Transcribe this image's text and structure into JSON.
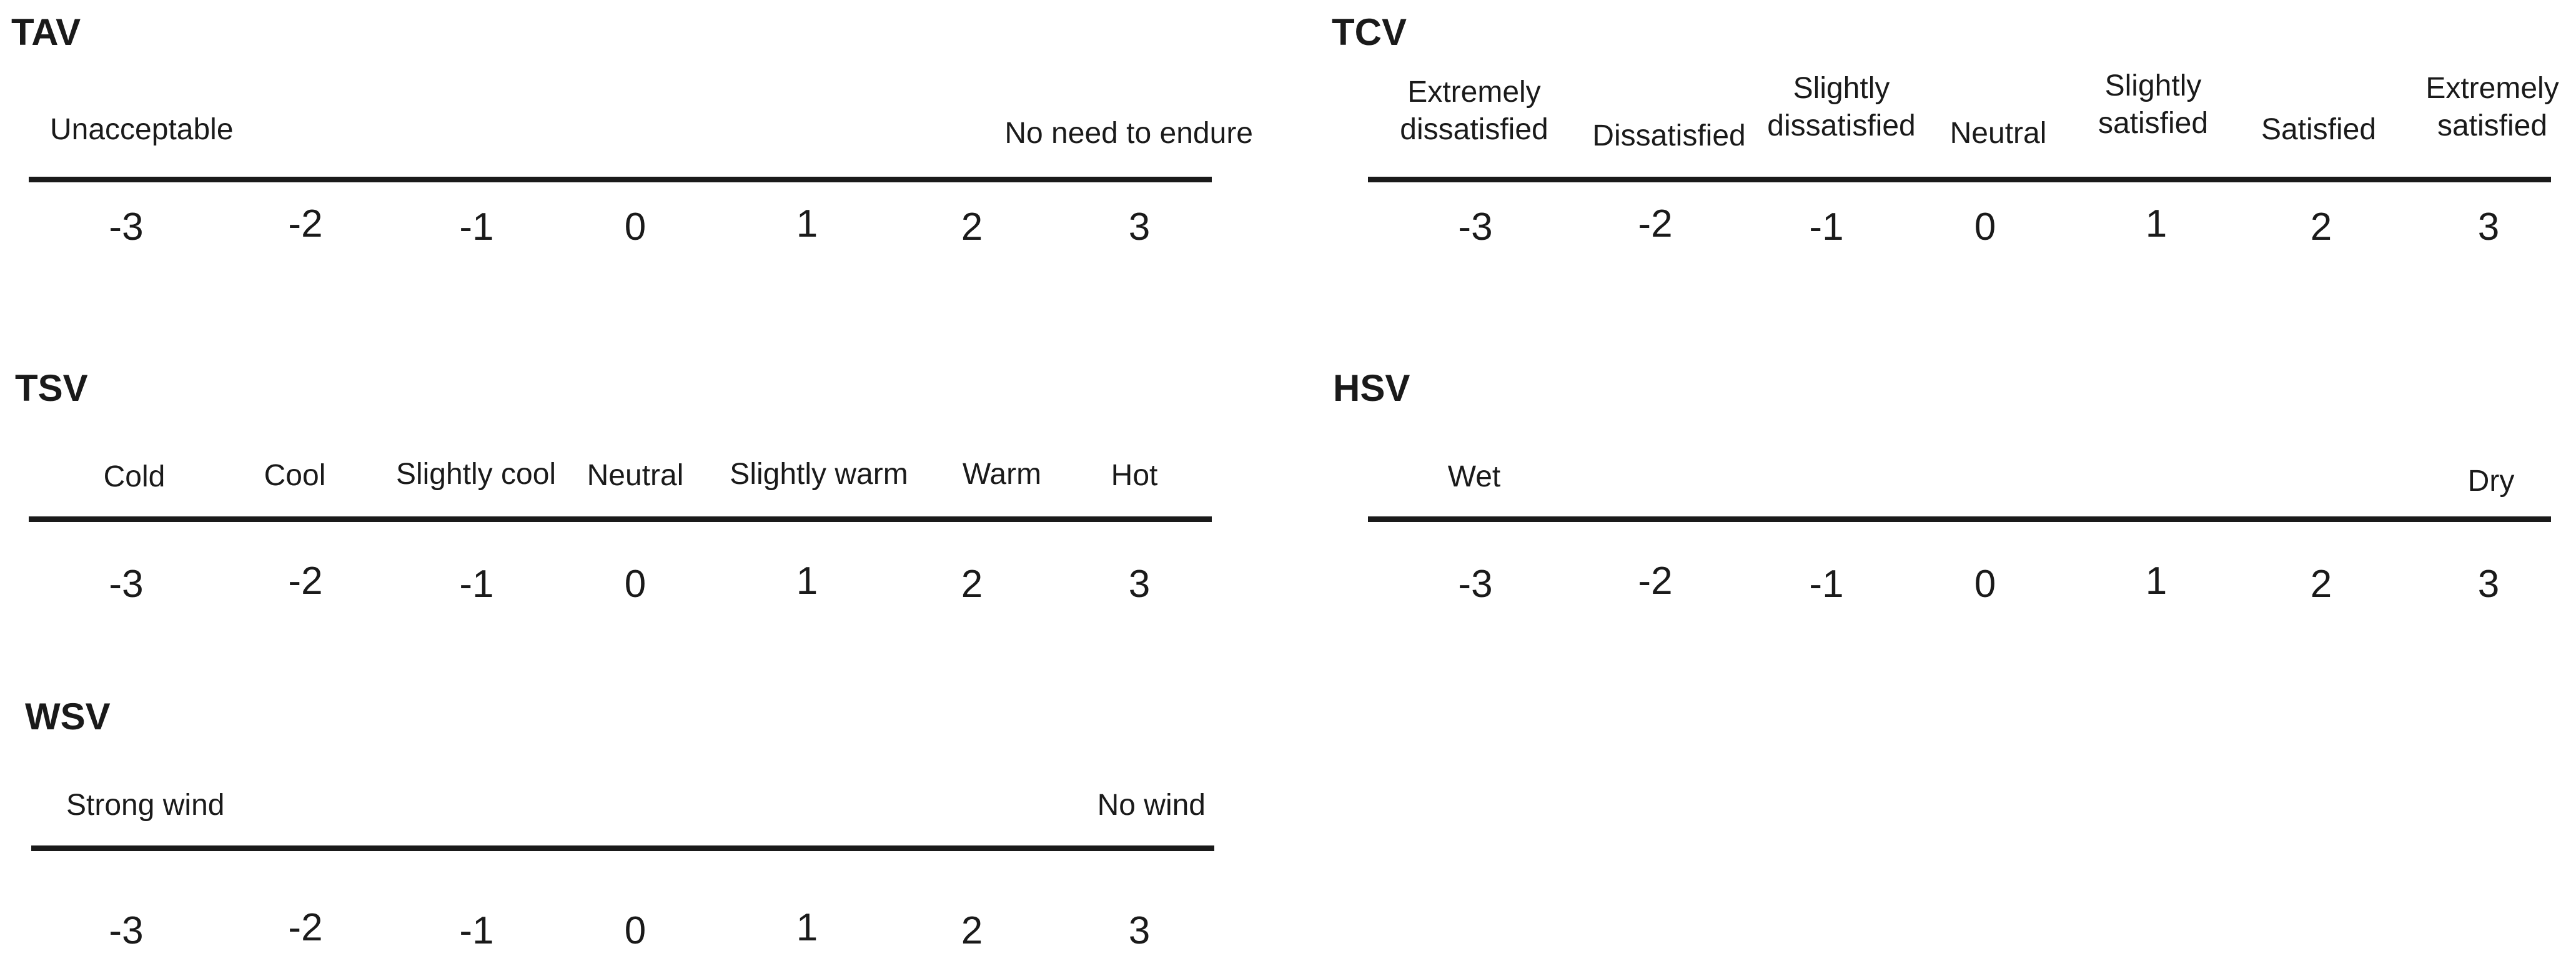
{
  "scales": {
    "tav": {
      "title": "TAV",
      "left_label": "Unacceptable",
      "right_label": "No need to endure",
      "numbers": [
        "-3",
        "-2",
        "-1",
        "0",
        "1",
        "2",
        "3"
      ]
    },
    "tcv": {
      "title": "TCV",
      "labels": [
        "Extremely\ndissatisfied",
        "Dissatisfied",
        "Slightly\ndissatisfied",
        "Neutral",
        "Slightly\nsatisfied",
        "Satisfied",
        "Extremely\nsatisfied"
      ],
      "numbers": [
        "-3",
        "-2",
        "-1",
        "0",
        "1",
        "2",
        "3"
      ]
    },
    "tsv": {
      "title": "TSV",
      "labels": [
        "Cold",
        "Cool",
        "Slightly cool",
        "Neutral",
        "Slightly warm",
        "Warm",
        "Hot"
      ],
      "numbers": [
        "-3",
        "-2",
        "-1",
        "0",
        "1",
        "2",
        "3"
      ]
    },
    "hsv": {
      "title": "HSV",
      "left_label": "Wet",
      "right_label": "Dry",
      "numbers": [
        "-3",
        "-2",
        "-1",
        "0",
        "1",
        "2",
        "3"
      ]
    },
    "wsv": {
      "title": "WSV",
      "left_label": "Strong wind",
      "right_label": "No wind",
      "numbers": [
        "-3",
        "-2",
        "-1",
        "0",
        "1",
        "2",
        "3"
      ]
    }
  },
  "colors": {
    "text": "#1a1a1a",
    "line": "#1a1a1a",
    "background": "#ffffff"
  }
}
